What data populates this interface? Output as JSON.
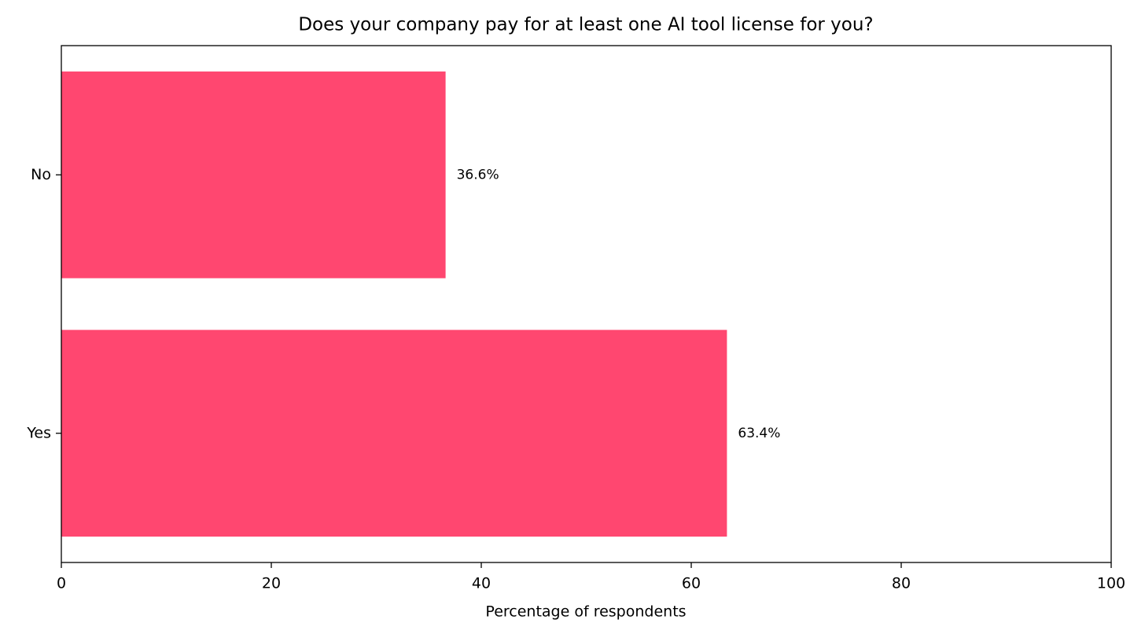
{
  "chart_data": {
    "type": "barh",
    "title": "Does your company pay for at least one AI tool license for you?",
    "x_label": "Percentage of respondents",
    "categories": [
      "Yes",
      "No"
    ],
    "values": [
      63.4,
      36.6
    ],
    "value_labels": [
      "63.4%",
      "36.6%"
    ],
    "color": "#ff4770",
    "xlim": [
      0,
      100
    ],
    "xticks": [
      0,
      20,
      40,
      60,
      80,
      100
    ]
  }
}
